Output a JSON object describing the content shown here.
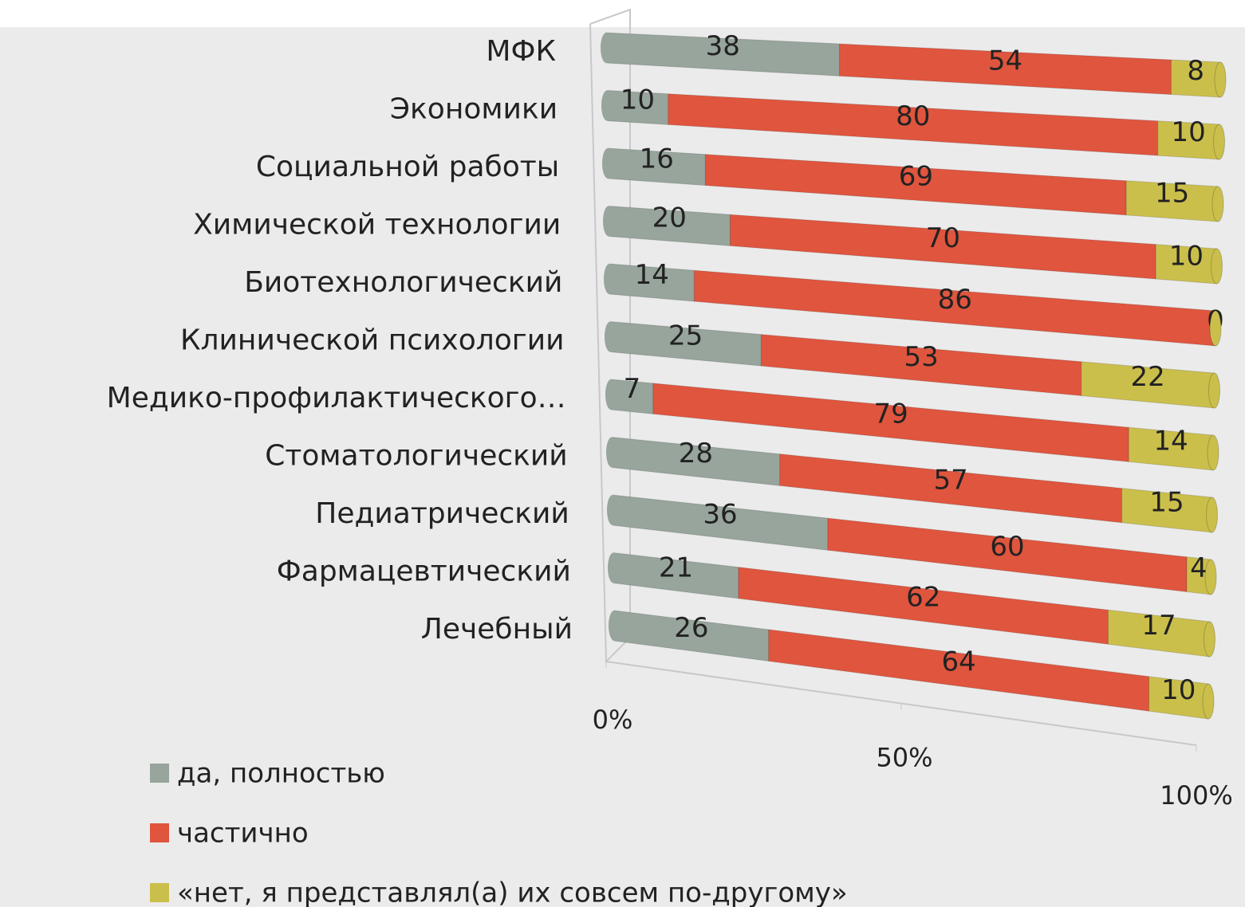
{
  "chart_data": {
    "type": "bar",
    "orientation": "horizontal",
    "stacked": true,
    "categories": [
      "МФК",
      "Экономики",
      "Социальной работы",
      "Химической технологии",
      "Биотехнологический",
      "Клинической психологии",
      "Медико-профилактического…",
      "Стоматологический",
      "Педиатрический",
      "Фармацевтический",
      "Лечебный"
    ],
    "series": [
      {
        "name": "да, полностью",
        "color": "#97a59c",
        "values": [
          38,
          10,
          16,
          20,
          14,
          25,
          7,
          28,
          36,
          21,
          26
        ]
      },
      {
        "name": "частично",
        "color": "#e0553e",
        "values": [
          54,
          80,
          69,
          70,
          86,
          53,
          79,
          57,
          60,
          62,
          64
        ]
      },
      {
        "name": "«нет, я представлял(а) их совсем по-другому»",
        "color": "#cbbf4c",
        "values": [
          8,
          10,
          15,
          10,
          0,
          22,
          14,
          15,
          4,
          17,
          10
        ]
      }
    ],
    "xlim": [
      0,
      100
    ],
    "xticks": [
      {
        "value": 0,
        "label": "0%"
      },
      {
        "value": 50,
        "label": "50%"
      },
      {
        "value": 100,
        "label": "100%"
      }
    ]
  }
}
